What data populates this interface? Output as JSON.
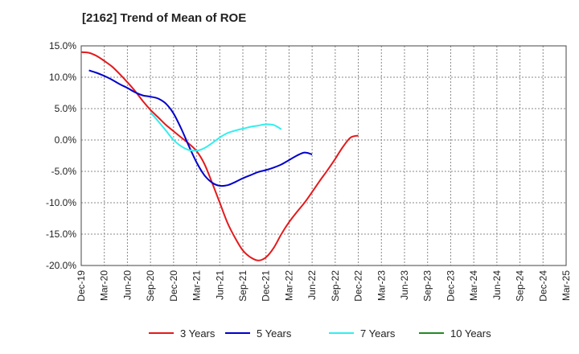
{
  "chart_data": {
    "type": "line",
    "title": "[2162]  Trend of Mean of ROE",
    "xlabel": "",
    "ylabel": "",
    "x_ticks": [
      "Dec-19",
      "Mar-20",
      "Jun-20",
      "Sep-20",
      "Dec-20",
      "Mar-21",
      "Jun-21",
      "Sep-21",
      "Dec-21",
      "Mar-22",
      "Jun-22",
      "Sep-22",
      "Dec-22",
      "Mar-23",
      "Jun-23",
      "Sep-23",
      "Dec-23",
      "Mar-24",
      "Jun-24",
      "Sep-24",
      "Dec-24",
      "Mar-25"
    ],
    "y_ticks": [
      15,
      10,
      5,
      0,
      -5,
      -10,
      -15,
      -20
    ],
    "y_tick_labels": [
      "15.0%",
      "10.0%",
      "5.0%",
      "0.0%",
      "-5.0%",
      "-10.0%",
      "-15.0%",
      "-20.0%"
    ],
    "ylim": [
      -20,
      15
    ],
    "grid": true,
    "legend_position": "bottom",
    "series": [
      {
        "name": "3 Years",
        "color": "#e31a1c",
        "start_index": 0,
        "values": [
          14.0,
          13.9,
          13.4,
          12.6,
          11.7,
          10.5,
          9.2,
          7.8,
          6.2,
          4.8,
          3.6,
          2.4,
          1.4,
          0.4,
          -0.6,
          -1.8,
          -3.8,
          -6.8,
          -10.0,
          -13.2,
          -15.6,
          -17.6,
          -18.7,
          -19.2,
          -18.7,
          -17.2,
          -15.0,
          -13.1,
          -11.5,
          -10.0,
          -8.3,
          -6.5,
          -4.8,
          -3.0,
          -1.1,
          0.4,
          0.7
        ]
      },
      {
        "name": "5 Years",
        "color": "#0000cc",
        "start_index": 1,
        "values": [
          11.1,
          10.7,
          10.2,
          9.6,
          8.9,
          8.3,
          7.6,
          7.1,
          6.9,
          6.6,
          5.8,
          4.2,
          1.8,
          -1.0,
          -3.6,
          -5.6,
          -6.8,
          -7.3,
          -7.2,
          -6.7,
          -6.1,
          -5.6,
          -5.1,
          -4.8,
          -4.4,
          -3.9,
          -3.2,
          -2.5,
          -2.0,
          -2.3
        ]
      },
      {
        "name": "7 Years",
        "color": "#33eeee",
        "start_index": 9,
        "values": [
          4.4,
          3.0,
          1.5,
          0.0,
          -1.0,
          -1.6,
          -1.7,
          -1.3,
          -0.5,
          0.4,
          1.1,
          1.5,
          1.8,
          2.1,
          2.3,
          2.5,
          2.4,
          1.7
        ]
      },
      {
        "name": "10 Years",
        "color": "#228b22",
        "start_index": 0,
        "values": []
      }
    ]
  }
}
